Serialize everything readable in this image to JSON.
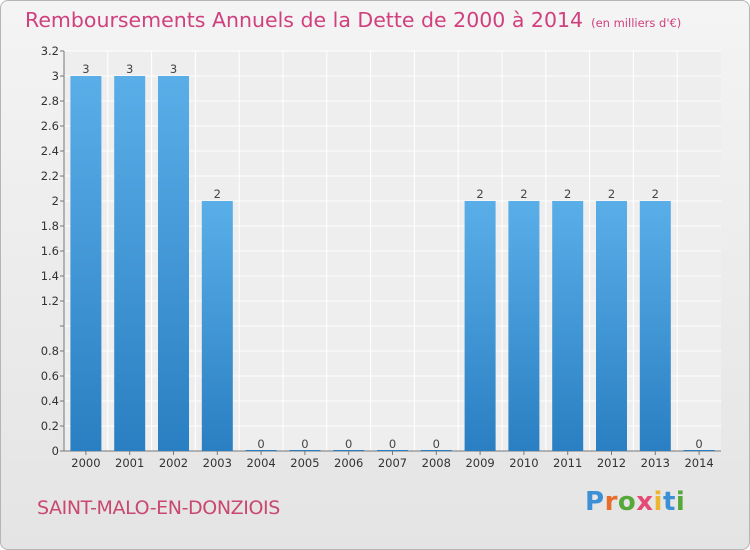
{
  "header": {
    "title": "Remboursements Annuels de la Dette de 2000 à 2014",
    "unit": "(en milliers d'€)"
  },
  "footer": {
    "commune": "SAINT-MALO-EN-DONZIOIS",
    "brand": "Proxiti"
  },
  "colors": {
    "bar": "#5aaee8",
    "barDark": "#2a7fc2",
    "title": "#d0407e"
  },
  "chart_data": {
    "type": "bar",
    "title": "Remboursements Annuels de la Dette de 2000 à 2014",
    "ylabel": "en milliers d'€",
    "xlabel": "",
    "categories": [
      "2000",
      "2001",
      "2002",
      "2003",
      "2004",
      "2005",
      "2006",
      "2007",
      "2008",
      "2009",
      "2010",
      "2011",
      "2012",
      "2013",
      "2014"
    ],
    "values": [
      3,
      3,
      3,
      2,
      0,
      0,
      0,
      0,
      0,
      2,
      2,
      2,
      2,
      2,
      0
    ],
    "data_labels": [
      "3",
      "3",
      "3",
      "2",
      "0",
      "0",
      "0",
      "0",
      "0",
      "2",
      "2",
      "2",
      "2",
      "2",
      "0"
    ],
    "ylim": [
      0,
      3.2
    ],
    "yticks": [
      0,
      0.2,
      0.4,
      0.6,
      0.8,
      1,
      1.2,
      1.4,
      1.6,
      1.8,
      2,
      2.2,
      2.4,
      2.6,
      2.8,
      3,
      3.2
    ],
    "ytick_labels": [
      "0",
      "0.2",
      "0.4",
      "0.6",
      "0.8",
      "",
      "1.2",
      "1.4",
      "1.6",
      "1.8",
      "2",
      "2.2",
      "2.4",
      "2.6",
      "2.8",
      "3",
      "3.2"
    ],
    "grid": true
  }
}
